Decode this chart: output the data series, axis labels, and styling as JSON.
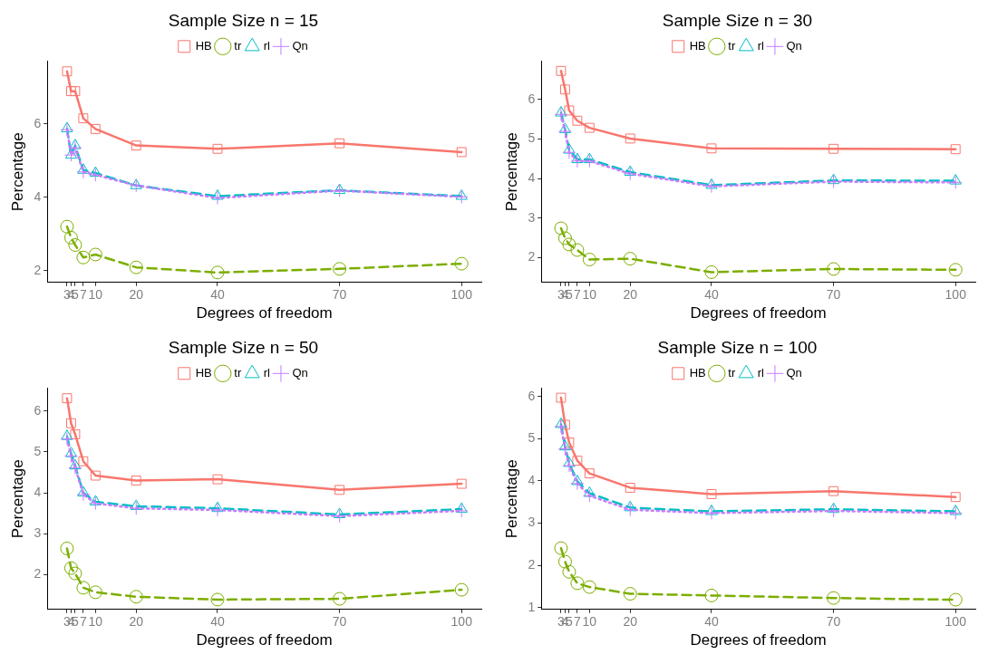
{
  "chart_data": [
    {
      "type": "line",
      "title": "Sample Size n = 15",
      "xlabel": "Degrees of freedom",
      "ylabel": "Percentage",
      "x": [
        3,
        4,
        5,
        7,
        10,
        20,
        40,
        70,
        100
      ],
      "xlim": [
        -1.85,
        104.85
      ],
      "xticks": [
        3,
        4,
        5,
        7,
        10,
        20,
        40,
        70,
        100
      ],
      "ylim": [
        1.68,
        7.7
      ],
      "yticks": [
        2,
        4,
        6
      ],
      "grid": false,
      "legend": "top",
      "series": [
        {
          "name": "HB",
          "color": "#f8766d",
          "marker": "square",
          "line_style": "solid",
          "values": [
            7.43,
            6.89,
            6.89,
            6.15,
            5.86,
            5.41,
            5.32,
            5.47,
            5.23
          ]
        },
        {
          "name": "tr",
          "color": "#7cae00",
          "marker": "circle",
          "line_style": "dashed",
          "values": [
            3.2,
            2.9,
            2.7,
            2.36,
            2.44,
            2.09,
            1.95,
            2.05,
            2.19
          ]
        },
        {
          "name": "rl",
          "color": "#00bfc4",
          "marker": "triangle",
          "line_style": "dashed",
          "values": [
            5.87,
            5.15,
            5.41,
            4.74,
            4.66,
            4.32,
            4.03,
            4.19,
            4.03
          ]
        },
        {
          "name": "Qn",
          "color": "#c77cff",
          "marker": "cross",
          "line_style": "dotted",
          "values": [
            5.84,
            5.15,
            5.35,
            4.69,
            4.61,
            4.32,
            3.98,
            4.18,
            4.01
          ]
        }
      ]
    },
    {
      "type": "line",
      "title": "Sample Size n = 30",
      "xlabel": "Degrees of freedom",
      "ylabel": "Percentage",
      "x": [
        3,
        4,
        5,
        7,
        10,
        20,
        40,
        70,
        100
      ],
      "xlim": [
        -1.85,
        104.85
      ],
      "xticks": [
        3,
        4,
        5,
        7,
        10,
        20,
        40,
        70,
        100
      ],
      "ylim": [
        1.37,
        6.96
      ],
      "yticks": [
        2,
        3,
        4,
        5,
        6
      ],
      "grid": false,
      "legend": "top",
      "series": [
        {
          "name": "HB",
          "color": "#f8766d",
          "marker": "square",
          "line_style": "solid",
          "values": [
            6.72,
            6.25,
            5.72,
            5.46,
            5.28,
            5.01,
            4.76,
            4.75,
            4.74
          ]
        },
        {
          "name": "tr",
          "color": "#7cae00",
          "marker": "circle",
          "line_style": "dashed",
          "values": [
            2.74,
            2.49,
            2.33,
            2.19,
            1.95,
            1.97,
            1.63,
            1.71,
            1.69
          ]
        },
        {
          "name": "rl",
          "color": "#00bfc4",
          "marker": "triangle",
          "line_style": "dashed",
          "values": [
            5.66,
            5.24,
            4.72,
            4.48,
            4.48,
            4.16,
            3.83,
            3.95,
            3.94
          ]
        },
        {
          "name": "Qn",
          "color": "#c77cff",
          "marker": "cross",
          "line_style": "dotted",
          "values": [
            5.62,
            5.19,
            4.66,
            4.44,
            4.44,
            4.12,
            3.8,
            3.92,
            3.9
          ]
        }
      ]
    },
    {
      "type": "line",
      "title": "Sample Size n = 50",
      "xlabel": "Degrees of freedom",
      "ylabel": "Percentage",
      "x": [
        3,
        4,
        5,
        7,
        10,
        20,
        40,
        70,
        100
      ],
      "xlim": [
        -1.85,
        104.85
      ],
      "xticks": [
        3,
        4,
        5,
        7,
        10,
        20,
        40,
        70,
        100
      ],
      "ylim": [
        1.15,
        6.55
      ],
      "yticks": [
        2,
        3,
        4,
        5,
        6
      ],
      "grid": false,
      "legend": "top",
      "series": [
        {
          "name": "HB",
          "color": "#f8766d",
          "marker": "square",
          "line_style": "solid",
          "values": [
            6.31,
            5.7,
            5.43,
            4.77,
            4.42,
            4.3,
            4.33,
            4.07,
            4.22
          ]
        },
        {
          "name": "tr",
          "color": "#7cae00",
          "marker": "circle",
          "line_style": "dashed",
          "values": [
            2.64,
            2.16,
            2.03,
            1.68,
            1.57,
            1.46,
            1.39,
            1.41,
            1.63
          ]
        },
        {
          "name": "rl",
          "color": "#00bfc4",
          "marker": "triangle",
          "line_style": "dashed",
          "values": [
            5.38,
            4.96,
            4.66,
            4.0,
            3.78,
            3.67,
            3.62,
            3.47,
            3.6
          ]
        },
        {
          "name": "Qn",
          "color": "#c77cff",
          "marker": "cross",
          "line_style": "dotted",
          "values": [
            5.32,
            4.9,
            4.61,
            3.96,
            3.74,
            3.62,
            3.58,
            3.43,
            3.56
          ]
        }
      ]
    },
    {
      "type": "line",
      "title": "Sample Size n = 100",
      "xlabel": "Degrees of freedom",
      "ylabel": "Percentage",
      "x": [
        3,
        4,
        5,
        7,
        10,
        20,
        40,
        70,
        100
      ],
      "xlim": [
        -1.85,
        104.85
      ],
      "xticks": [
        3,
        4,
        5,
        7,
        10,
        20,
        40,
        70,
        100
      ],
      "ylim": [
        0.96,
        6.19
      ],
      "yticks": [
        1,
        2,
        3,
        4,
        5,
        6
      ],
      "grid": false,
      "legend": "top",
      "series": [
        {
          "name": "HB",
          "color": "#f8766d",
          "marker": "square",
          "line_style": "solid",
          "values": [
            5.97,
            5.33,
            4.91,
            4.48,
            4.18,
            3.84,
            3.69,
            3.76,
            3.62
          ]
        },
        {
          "name": "tr",
          "color": "#7cae00",
          "marker": "circle",
          "line_style": "dashed",
          "values": [
            2.41,
            2.09,
            1.85,
            1.58,
            1.49,
            1.33,
            1.29,
            1.23,
            1.19
          ]
        },
        {
          "name": "rl",
          "color": "#00bfc4",
          "marker": "triangle",
          "line_style": "dashed",
          "values": [
            5.34,
            4.81,
            4.42,
            3.99,
            3.71,
            3.37,
            3.28,
            3.33,
            3.28
          ]
        },
        {
          "name": "Qn",
          "color": "#c77cff",
          "marker": "cross",
          "line_style": "dotted",
          "values": [
            5.29,
            4.76,
            4.36,
            3.94,
            3.65,
            3.32,
            3.24,
            3.29,
            3.24
          ]
        }
      ]
    }
  ]
}
